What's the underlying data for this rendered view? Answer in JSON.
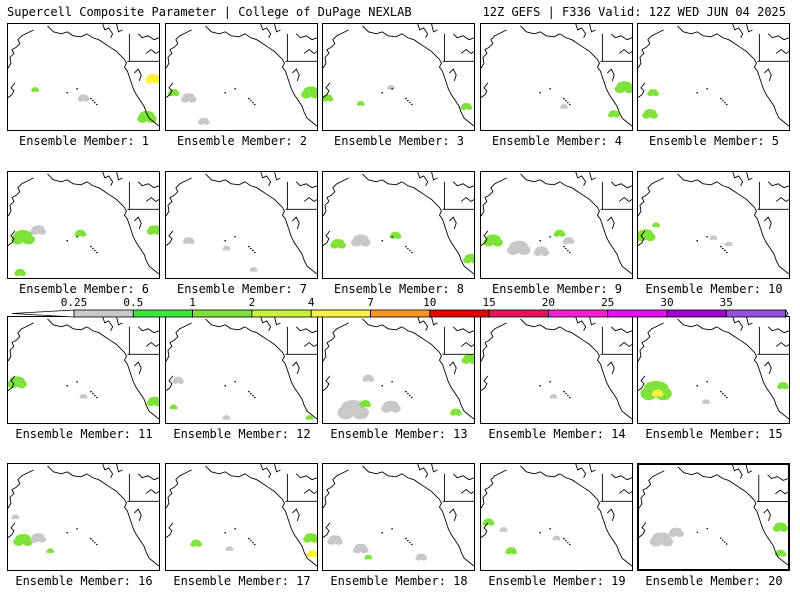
{
  "header": {
    "left": "Supercell Composite Parameter | College of DuPage NEXLAB",
    "right": "12Z GEFS | F336 Valid: 12Z WED JUN 04 2025"
  },
  "label_prefix": "Ensemble Member: ",
  "selected_member": 20,
  "members": [
    {
      "id": 1,
      "label": "Ensemble Member: 1",
      "blobs": [
        [
          "#7fe23a",
          0.18,
          0.62,
          0.02
        ],
        [
          "#fff23a",
          0.96,
          0.52,
          0.04
        ],
        [
          "#7fe23a",
          0.92,
          0.88,
          0.05
        ],
        [
          "#c8c8c8",
          0.5,
          0.7,
          0.03
        ]
      ]
    },
    {
      "id": 2,
      "label": "Ensemble Member: 2",
      "blobs": [
        [
          "#c8c8c8",
          0.15,
          0.7,
          0.04
        ],
        [
          "#7fe23a",
          0.05,
          0.65,
          0.03
        ],
        [
          "#c8c8c8",
          0.25,
          0.92,
          0.03
        ],
        [
          "#7fe23a",
          0.96,
          0.65,
          0.05
        ]
      ]
    },
    {
      "id": 3,
      "label": "Ensemble Member: 3",
      "blobs": [
        [
          "#7fe23a",
          0.03,
          0.7,
          0.03
        ],
        [
          "#7fe23a",
          0.25,
          0.75,
          0.02
        ],
        [
          "#c8c8c8",
          0.45,
          0.6,
          0.02
        ],
        [
          "#7fe23a",
          0.95,
          0.78,
          0.03
        ]
      ]
    },
    {
      "id": 4,
      "label": "Ensemble Member: 4",
      "blobs": [
        [
          "#7fe23a",
          0.95,
          0.6,
          0.05
        ],
        [
          "#7fe23a",
          0.88,
          0.85,
          0.03
        ],
        [
          "#c8c8c8",
          0.55,
          0.78,
          0.02
        ]
      ]
    },
    {
      "id": 5,
      "label": "Ensemble Member: 5",
      "blobs": [
        [
          "#7fe23a",
          0.08,
          0.85,
          0.04
        ],
        [
          "#7fe23a",
          0.1,
          0.65,
          0.03
        ]
      ]
    },
    {
      "id": 6,
      "label": "Ensemble Member: 6",
      "blobs": [
        [
          "#7fe23a",
          0.1,
          0.62,
          0.06
        ],
        [
          "#c8c8c8",
          0.2,
          0.55,
          0.04
        ],
        [
          "#7fe23a",
          0.48,
          0.58,
          0.03
        ],
        [
          "#7fe23a",
          0.97,
          0.55,
          0.04
        ],
        [
          "#7fe23a",
          0.08,
          0.95,
          0.03
        ]
      ]
    },
    {
      "id": 7,
      "label": "Ensemble Member: 7",
      "blobs": [
        [
          "#c8c8c8",
          0.15,
          0.65,
          0.03
        ],
        [
          "#c8c8c8",
          0.4,
          0.72,
          0.02
        ],
        [
          "#c8c8c8",
          0.58,
          0.92,
          0.02
        ]
      ]
    },
    {
      "id": 8,
      "label": "Ensemble Member: 8",
      "blobs": [
        [
          "#7fe23a",
          0.1,
          0.68,
          0.04
        ],
        [
          "#c8c8c8",
          0.25,
          0.65,
          0.05
        ],
        [
          "#7fe23a",
          0.48,
          0.6,
          0.03
        ],
        [
          "#7fe23a",
          0.98,
          0.82,
          0.04
        ]
      ]
    },
    {
      "id": 9,
      "label": "Ensemble Member: 9",
      "blobs": [
        [
          "#7fe23a",
          0.08,
          0.65,
          0.05
        ],
        [
          "#c8c8c8",
          0.25,
          0.72,
          0.06
        ],
        [
          "#c8c8c8",
          0.4,
          0.75,
          0.04
        ],
        [
          "#7fe23a",
          0.52,
          0.58,
          0.03
        ],
        [
          "#c8c8c8",
          0.58,
          0.65,
          0.03
        ]
      ]
    },
    {
      "id": 10,
      "label": "Ensemble Member: 10",
      "blobs": [
        [
          "#7fe23a",
          0.05,
          0.6,
          0.05
        ],
        [
          "#7fe23a",
          0.12,
          0.5,
          0.02
        ],
        [
          "#c8c8c8",
          0.5,
          0.62,
          0.02
        ],
        [
          "#c8c8c8",
          0.6,
          0.68,
          0.02
        ]
      ]
    },
    {
      "id": 11,
      "label": "Ensemble Member: 11",
      "blobs": [
        [
          "#7fe23a",
          0.06,
          0.62,
          0.05
        ],
        [
          "#7fe23a",
          0.97,
          0.8,
          0.04
        ],
        [
          "#c8c8c8",
          0.5,
          0.75,
          0.02
        ]
      ]
    },
    {
      "id": 12,
      "label": "Ensemble Member: 12",
      "blobs": [
        [
          "#c8c8c8",
          0.08,
          0.6,
          0.03
        ],
        [
          "#7fe23a",
          0.05,
          0.85,
          0.02
        ],
        [
          "#c8c8c8",
          0.4,
          0.95,
          0.02
        ],
        [
          "#7fe23a",
          0.95,
          0.95,
          0.02
        ]
      ]
    },
    {
      "id": 13,
      "label": "Ensemble Member: 13",
      "blobs": [
        [
          "#7fe23a",
          0.97,
          0.4,
          0.04
        ],
        [
          "#c8c8c8",
          0.2,
          0.88,
          0.08
        ],
        [
          "#7fe23a",
          0.28,
          0.82,
          0.03
        ],
        [
          "#c8c8c8",
          0.45,
          0.85,
          0.05
        ],
        [
          "#7fe23a",
          0.88,
          0.9,
          0.03
        ],
        [
          "#c8c8c8",
          0.3,
          0.58,
          0.03
        ]
      ]
    },
    {
      "id": 14,
      "label": "Ensemble Member: 14",
      "blobs": [
        [
          "#c8c8c8",
          0.48,
          0.75,
          0.02
        ]
      ]
    },
    {
      "id": 15,
      "label": "Ensemble Member: 15",
      "blobs": [
        [
          "#7fe23a",
          0.12,
          0.7,
          0.08
        ],
        [
          "#fff23a",
          0.13,
          0.72,
          0.03
        ],
        [
          "#c8c8c8",
          0.45,
          0.8,
          0.02
        ],
        [
          "#7fe23a",
          0.96,
          0.65,
          0.03
        ]
      ]
    },
    {
      "id": 16,
      "label": "Ensemble Member: 16",
      "blobs": [
        [
          "#7fe23a",
          0.1,
          0.72,
          0.05
        ],
        [
          "#c8c8c8",
          0.2,
          0.7,
          0.04
        ],
        [
          "#7fe23a",
          0.28,
          0.82,
          0.02
        ],
        [
          "#c8c8c8",
          0.05,
          0.5,
          0.02
        ]
      ]
    },
    {
      "id": 17,
      "label": "Ensemble Member: 17",
      "blobs": [
        [
          "#7fe23a",
          0.2,
          0.75,
          0.03
        ],
        [
          "#7fe23a",
          0.96,
          0.7,
          0.04
        ],
        [
          "#fff23a",
          0.97,
          0.85,
          0.03
        ],
        [
          "#c8c8c8",
          0.42,
          0.8,
          0.02
        ]
      ]
    },
    {
      "id": 18,
      "label": "Ensemble Member: 18",
      "blobs": [
        [
          "#c8c8c8",
          0.08,
          0.72,
          0.04
        ],
        [
          "#c8c8c8",
          0.25,
          0.8,
          0.04
        ],
        [
          "#7fe23a",
          0.3,
          0.88,
          0.02
        ],
        [
          "#c8c8c8",
          0.65,
          0.88,
          0.03
        ]
      ]
    },
    {
      "id": 19,
      "label": "Ensemble Member: 19",
      "blobs": [
        [
          "#7fe23a",
          0.05,
          0.55,
          0.03
        ],
        [
          "#c8c8c8",
          0.15,
          0.62,
          0.02
        ],
        [
          "#7fe23a",
          0.2,
          0.82,
          0.03
        ],
        [
          "#c8c8c8",
          0.5,
          0.7,
          0.02
        ]
      ]
    },
    {
      "id": 20,
      "label": "Ensemble Member: 20",
      "blobs": [
        [
          "#c8c8c8",
          0.15,
          0.72,
          0.06
        ],
        [
          "#c8c8c8",
          0.25,
          0.65,
          0.04
        ],
        [
          "#7fe23a",
          0.95,
          0.6,
          0.04
        ],
        [
          "#7fe23a",
          0.95,
          0.85,
          0.03
        ]
      ]
    }
  ],
  "colorbar": {
    "tick_labels": [
      "0.25",
      "0.5",
      "1",
      "2",
      "4",
      "7",
      "10",
      "15",
      "20",
      "25",
      "30",
      "35"
    ],
    "colors": [
      "#c8c8c8",
      "#3ce53c",
      "#7fe23a",
      "#c8f23c",
      "#fff23a",
      "#ff9624",
      "#e60000",
      "#e6145a",
      "#ff1ed2",
      "#e60ff0",
      "#a000d2",
      "#9650dc",
      "#50f0f0"
    ]
  }
}
